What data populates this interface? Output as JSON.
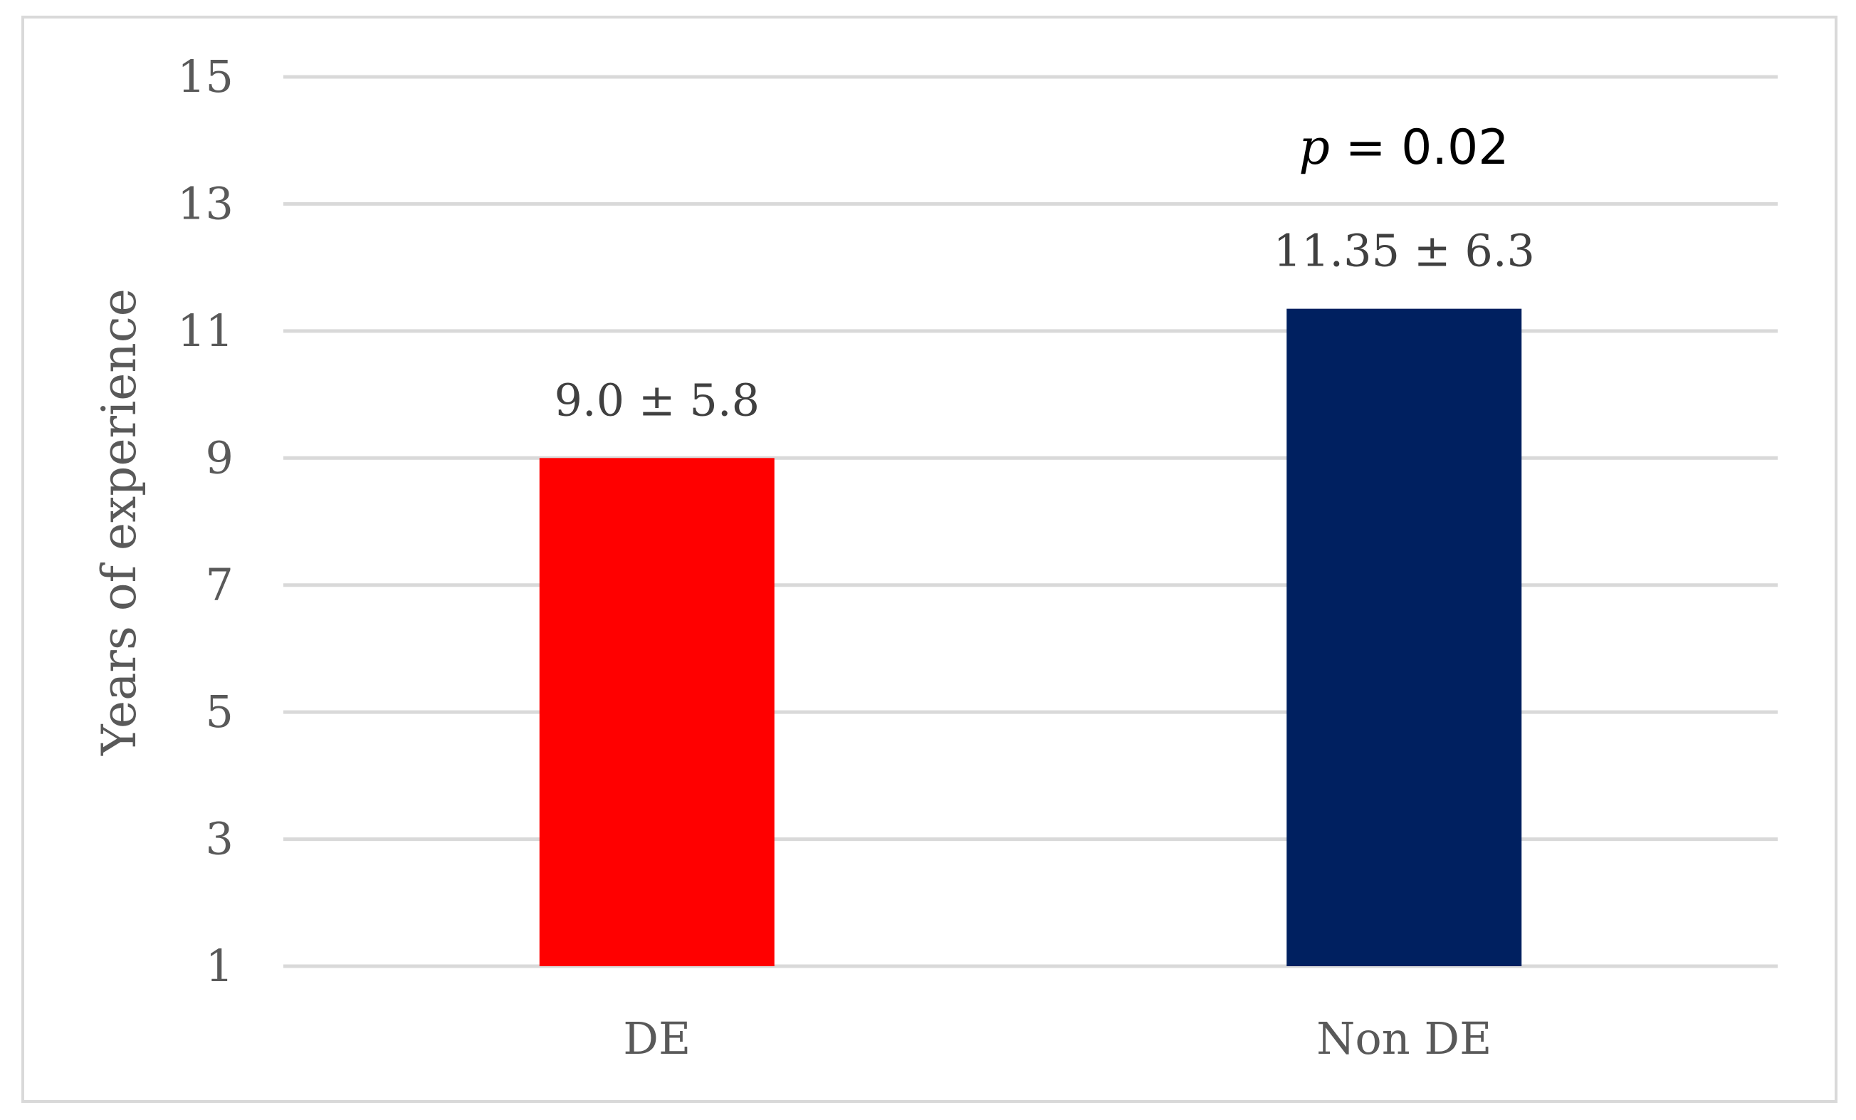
{
  "chart_data": {
    "type": "bar",
    "categories": [
      "DE",
      "Non DE"
    ],
    "values": [
      9.0,
      11.35
    ],
    "value_labels": [
      "9.0 ± 5.8",
      "11.35 ± 6.3"
    ],
    "colors": [
      "#ff0000",
      "#002060"
    ],
    "ylabel": "Years of experience",
    "xlabel": "",
    "title": "",
    "ylim": [
      1,
      15
    ],
    "yticks": [
      "1",
      "3",
      "5",
      "7",
      "9",
      "11",
      "13",
      "15"
    ],
    "grid": true,
    "annotation": {
      "symbol": "p",
      "text": " = 0.02"
    }
  }
}
